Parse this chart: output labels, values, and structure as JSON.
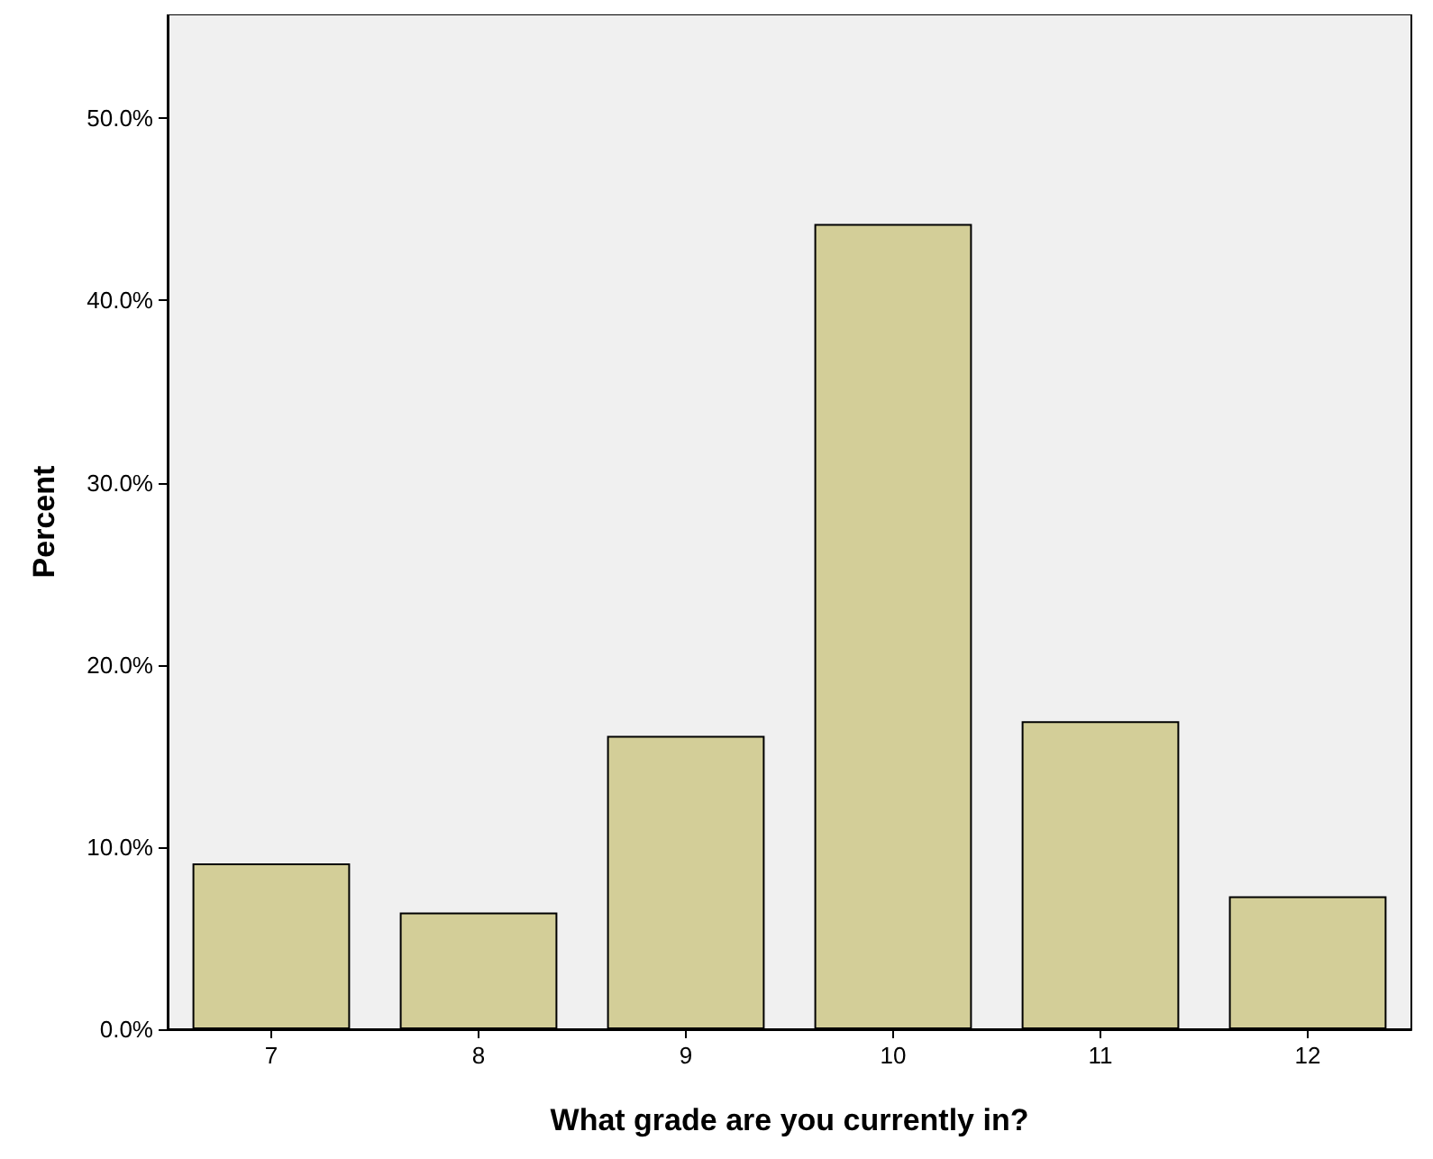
{
  "chart_data": {
    "type": "bar",
    "xlabel": "What grade are you currently in?",
    "ylabel": "Percent",
    "categories": [
      "7",
      "8",
      "9",
      "10",
      "11",
      "12"
    ],
    "values": [
      9.1,
      6.4,
      16.1,
      44.2,
      16.9,
      7.3
    ],
    "color": "#d3ce98",
    "ylim": [
      0,
      55.7
    ],
    "yticks": [
      {
        "value": 0,
        "label": "0.0%"
      },
      {
        "value": 10,
        "label": "10.0%"
      },
      {
        "value": 20,
        "label": "20.0%"
      },
      {
        "value": 30,
        "label": "30.0%"
      },
      {
        "value": 40,
        "label": "40.0%"
      },
      {
        "value": 50,
        "label": "50.0%"
      }
    ],
    "grid": false
  }
}
